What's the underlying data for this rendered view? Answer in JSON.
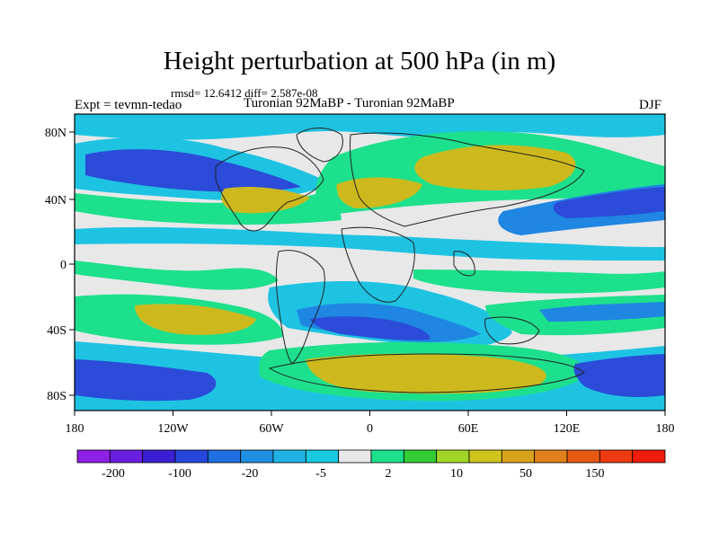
{
  "title": "Height perturbation at 500 hPa (in m)",
  "stats": "rmsd= 12.6412 diff= 2.587e-08",
  "left_label": "Expt = tevmn-tedao",
  "center_label": "Turonian  92MaBP - Turonian  92MaBP",
  "right_label": "DJF",
  "axes": {
    "x_ticks": [
      "180",
      "120W",
      "60W",
      "0",
      "60E",
      "120E",
      "180"
    ],
    "y_ticks": [
      "80N",
      "40N",
      "0",
      "40S",
      "80S"
    ]
  },
  "colorbar": {
    "colors": [
      "#8e1fe6",
      "#6a1ee0",
      "#3a20d2",
      "#2647dc",
      "#1f6fe0",
      "#1f8fe2",
      "#1fb2e3",
      "#18c9e0",
      "#e8e8e8",
      "#1de08c",
      "#34cc34",
      "#a2d626",
      "#cdc41d",
      "#d7a31a",
      "#e0801a",
      "#e65a14",
      "#ee3a10",
      "#f01c0c"
    ],
    "labels": [
      "-200",
      "-100",
      "-20",
      "-5",
      "2",
      "10",
      "50",
      "150"
    ]
  },
  "colors": {
    "neg_strong": "#2b4bd8",
    "neg_mid": "#1f86e2",
    "neg_weak": "#1ec3e2",
    "neutral": "#e8e8e8",
    "pos_weak": "#1de08c",
    "pos_mid": "#8ed62a",
    "pos_strong": "#cdb91d"
  }
}
